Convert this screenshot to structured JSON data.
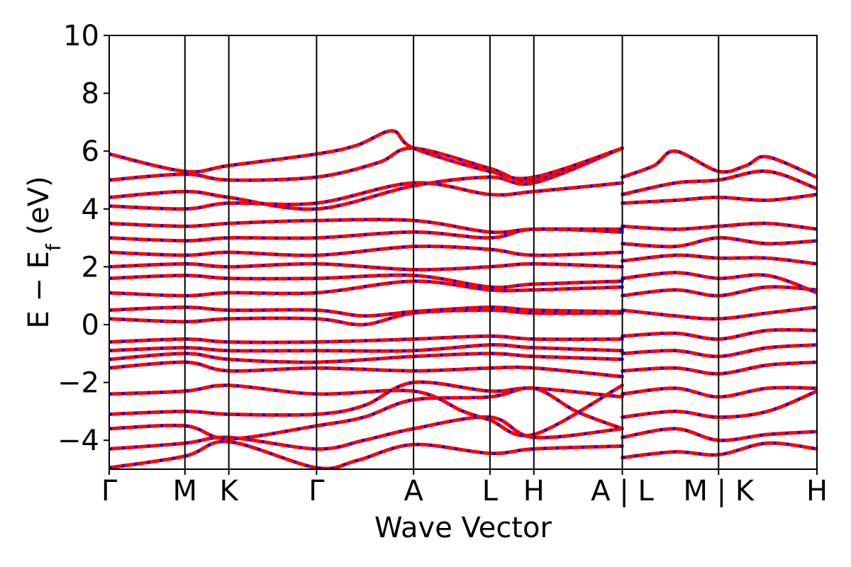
{
  "chart_data": {
    "type": "line",
    "title": "",
    "xlabel": "Wave Vector",
    "ylabel_main": "E − E",
    "ylabel_sub": "f",
    "ylabel_unit": " (eV)",
    "ylim": [
      -5,
      10
    ],
    "yticks": [
      -4,
      -2,
      0,
      2,
      4,
      6,
      8,
      10
    ],
    "ytick_labels": [
      "−4",
      "−2",
      "0",
      "2",
      "4",
      "6",
      "8",
      "10"
    ],
    "grid": false,
    "legend": "none",
    "colors": {
      "spin_up": "#ff0000",
      "spin_down": "#0000ff"
    },
    "kpoints": [
      {
        "label": "Γ",
        "x": 0.0
      },
      {
        "label": "M",
        "x": 0.107
      },
      {
        "label": "K",
        "x": 0.169
      },
      {
        "label": "Γ",
        "x": 0.293
      },
      {
        "label": "A",
        "x": 0.43
      },
      {
        "label": "L",
        "x": 0.538
      },
      {
        "label": "H",
        "x": 0.6
      },
      {
        "label": "A | L",
        "x": 0.725
      },
      {
        "label": "M | K",
        "x": 0.861
      },
      {
        "label": "H",
        "x": 1.0
      }
    ],
    "series": [
      {
        "points": [
          [
            0,
            -4.95
          ],
          [
            0.107,
            -4.55
          ],
          [
            0.169,
            -4.05
          ],
          [
            0.293,
            -4.95
          ],
          [
            0.35,
            -4.7
          ],
          [
            0.43,
            -4.15
          ],
          [
            0.538,
            -4.45
          ],
          [
            0.6,
            -4.3
          ],
          [
            0.725,
            -4.2
          ]
        ]
      },
      {
        "points": [
          [
            0,
            -4.3
          ],
          [
            0.107,
            -4.1
          ],
          [
            0.169,
            -3.9
          ],
          [
            0.293,
            -4.3
          ],
          [
            0.36,
            -4.0
          ],
          [
            0.43,
            -3.6
          ],
          [
            0.538,
            -3.2
          ],
          [
            0.6,
            -3.9
          ],
          [
            0.725,
            -3.6
          ]
        ]
      },
      {
        "points": [
          [
            0,
            -3.6
          ],
          [
            0.107,
            -3.5
          ],
          [
            0.169,
            -3.95
          ],
          [
            0.293,
            -3.5
          ],
          [
            0.36,
            -3.2
          ],
          [
            0.43,
            -2.6
          ],
          [
            0.538,
            -2.5
          ],
          [
            0.6,
            -2.2
          ],
          [
            0.66,
            -3.0
          ],
          [
            0.725,
            -3.6
          ]
        ]
      },
      {
        "points": [
          [
            0,
            -3.1
          ],
          [
            0.107,
            -3.0
          ],
          [
            0.169,
            -3.1
          ],
          [
            0.293,
            -3.1
          ],
          [
            0.36,
            -2.8
          ],
          [
            0.43,
            -2.0
          ],
          [
            0.538,
            -2.3
          ],
          [
            0.6,
            -2.2
          ],
          [
            0.725,
            -2.5
          ]
        ]
      },
      {
        "points": [
          [
            0,
            -2.4
          ],
          [
            0.107,
            -2.3
          ],
          [
            0.169,
            -2.1
          ],
          [
            0.293,
            -2.4
          ],
          [
            0.43,
            -2.3
          ],
          [
            0.5,
            -3.0
          ],
          [
            0.538,
            -3.3
          ],
          [
            0.6,
            -3.8
          ],
          [
            0.725,
            -2.1
          ]
        ]
      },
      {
        "points": [
          [
            0,
            -1.5
          ],
          [
            0.107,
            -1.3
          ],
          [
            0.169,
            -1.6
          ],
          [
            0.293,
            -1.5
          ],
          [
            0.43,
            -1.6
          ],
          [
            0.538,
            -1.5
          ],
          [
            0.6,
            -1.5
          ],
          [
            0.725,
            -1.8
          ]
        ]
      },
      {
        "points": [
          [
            0,
            -1.2
          ],
          [
            0.107,
            -1.0
          ],
          [
            0.169,
            -1.2
          ],
          [
            0.293,
            -1.3
          ],
          [
            0.43,
            -1.1
          ],
          [
            0.538,
            -1.0
          ],
          [
            0.6,
            -1.1
          ],
          [
            0.725,
            -1.2
          ]
        ]
      },
      {
        "points": [
          [
            0,
            -0.9
          ],
          [
            0.107,
            -0.8
          ],
          [
            0.169,
            -0.9
          ],
          [
            0.293,
            -0.9
          ],
          [
            0.43,
            -0.9
          ],
          [
            0.538,
            -0.7
          ],
          [
            0.6,
            -0.8
          ],
          [
            0.725,
            -0.9
          ]
        ]
      },
      {
        "points": [
          [
            0,
            -0.6
          ],
          [
            0.107,
            -0.5
          ],
          [
            0.169,
            -0.6
          ],
          [
            0.293,
            -0.6
          ],
          [
            0.43,
            -0.5
          ],
          [
            0.538,
            -0.4
          ],
          [
            0.6,
            -0.5
          ],
          [
            0.725,
            -0.5
          ]
        ]
      },
      {
        "points": [
          [
            0,
            0.2
          ],
          [
            0.107,
            0.1
          ],
          [
            0.169,
            0.2
          ],
          [
            0.293,
            0.2
          ],
          [
            0.36,
            0.0
          ],
          [
            0.43,
            0.4
          ],
          [
            0.538,
            0.5
          ],
          [
            0.6,
            0.4
          ],
          [
            0.725,
            0.4
          ]
        ]
      },
      {
        "points": [
          [
            0,
            0.5
          ],
          [
            0.107,
            0.6
          ],
          [
            0.169,
            0.5
          ],
          [
            0.293,
            0.5
          ],
          [
            0.36,
            0.3
          ],
          [
            0.43,
            0.45
          ],
          [
            0.538,
            0.6
          ],
          [
            0.6,
            0.5
          ],
          [
            0.725,
            0.45
          ]
        ]
      },
      {
        "points": [
          [
            0,
            1.1
          ],
          [
            0.107,
            1.0
          ],
          [
            0.169,
            1.1
          ],
          [
            0.293,
            1.1
          ],
          [
            0.43,
            1.5
          ],
          [
            0.538,
            1.2
          ],
          [
            0.6,
            1.2
          ],
          [
            0.725,
            1.3
          ]
        ]
      },
      {
        "points": [
          [
            0,
            1.6
          ],
          [
            0.107,
            1.7
          ],
          [
            0.169,
            1.6
          ],
          [
            0.293,
            1.6
          ],
          [
            0.43,
            1.7
          ],
          [
            0.538,
            1.3
          ],
          [
            0.6,
            1.4
          ],
          [
            0.725,
            1.5
          ]
        ]
      },
      {
        "points": [
          [
            0,
            2.0
          ],
          [
            0.107,
            2.1
          ],
          [
            0.169,
            2.0
          ],
          [
            0.293,
            2.1
          ],
          [
            0.43,
            1.9
          ],
          [
            0.538,
            2.0
          ],
          [
            0.6,
            2.1
          ],
          [
            0.725,
            2.0
          ]
        ]
      },
      {
        "points": [
          [
            0,
            2.5
          ],
          [
            0.107,
            2.4
          ],
          [
            0.169,
            2.5
          ],
          [
            0.293,
            2.4
          ],
          [
            0.43,
            2.7
          ],
          [
            0.538,
            2.6
          ],
          [
            0.6,
            2.4
          ],
          [
            0.725,
            2.5
          ]
        ]
      },
      {
        "points": [
          [
            0,
            3.0
          ],
          [
            0.107,
            2.9
          ],
          [
            0.169,
            3.0
          ],
          [
            0.293,
            3.0
          ],
          [
            0.43,
            3.2
          ],
          [
            0.538,
            3.0
          ],
          [
            0.6,
            3.3
          ],
          [
            0.725,
            3.2
          ]
        ]
      },
      {
        "points": [
          [
            0,
            3.5
          ],
          [
            0.107,
            3.4
          ],
          [
            0.169,
            3.5
          ],
          [
            0.293,
            3.6
          ],
          [
            0.43,
            3.6
          ],
          [
            0.538,
            3.2
          ],
          [
            0.6,
            3.3
          ],
          [
            0.725,
            3.3
          ]
        ]
      },
      {
        "points": [
          [
            0,
            4.1
          ],
          [
            0.107,
            4.0
          ],
          [
            0.169,
            4.2
          ],
          [
            0.293,
            4.2
          ],
          [
            0.43,
            4.9
          ],
          [
            0.538,
            4.5
          ],
          [
            0.6,
            4.6
          ],
          [
            0.725,
            4.9
          ]
        ]
      },
      {
        "points": [
          [
            0,
            4.4
          ],
          [
            0.107,
            4.6
          ],
          [
            0.169,
            4.4
          ],
          [
            0.293,
            4.0
          ],
          [
            0.43,
            4.8
          ],
          [
            0.538,
            5.1
          ],
          [
            0.6,
            4.9
          ],
          [
            0.725,
            6.1
          ]
        ]
      },
      {
        "points": [
          [
            0,
            5.0
          ],
          [
            0.107,
            5.2
          ],
          [
            0.169,
            5.0
          ],
          [
            0.293,
            5.1
          ],
          [
            0.38,
            5.6
          ],
          [
            0.43,
            6.1
          ],
          [
            0.538,
            5.4
          ],
          [
            0.6,
            5.0
          ],
          [
            0.725,
            6.1
          ]
        ]
      },
      {
        "points": [
          [
            0,
            5.9
          ],
          [
            0.107,
            5.3
          ],
          [
            0.169,
            5.5
          ],
          [
            0.293,
            5.9
          ],
          [
            0.35,
            6.2
          ],
          [
            0.4,
            6.7
          ],
          [
            0.43,
            6.1
          ],
          [
            0.538,
            5.3
          ],
          [
            0.6,
            5.1
          ],
          [
            0.725,
            6.1
          ]
        ]
      },
      {
        "points": [
          [
            0.725,
            -4.6
          ],
          [
            0.8,
            -4.4
          ],
          [
            0.861,
            -4.5
          ],
          [
            0.93,
            -4.1
          ],
          [
            1.0,
            -4.3
          ]
        ]
      },
      {
        "points": [
          [
            0.725,
            -3.9
          ],
          [
            0.8,
            -3.6
          ],
          [
            0.861,
            -4.0
          ],
          [
            0.93,
            -3.8
          ],
          [
            1.0,
            -3.7
          ]
        ]
      },
      {
        "points": [
          [
            0.725,
            -3.2
          ],
          [
            0.8,
            -3.0
          ],
          [
            0.861,
            -3.2
          ],
          [
            0.93,
            -3.0
          ],
          [
            1.0,
            -2.3
          ]
        ]
      },
      {
        "points": [
          [
            0.725,
            -2.4
          ],
          [
            0.8,
            -2.2
          ],
          [
            0.861,
            -2.5
          ],
          [
            0.93,
            -2.2
          ],
          [
            1.0,
            -2.2
          ]
        ]
      },
      {
        "points": [
          [
            0.725,
            -1.6
          ],
          [
            0.8,
            -1.5
          ],
          [
            0.861,
            -1.7
          ],
          [
            0.93,
            -1.4
          ],
          [
            1.0,
            -1.3
          ]
        ]
      },
      {
        "points": [
          [
            0.725,
            -1.0
          ],
          [
            0.8,
            -0.9
          ],
          [
            0.861,
            -1.1
          ],
          [
            0.93,
            -0.8
          ],
          [
            1.0,
            -0.7
          ]
        ]
      },
      {
        "points": [
          [
            0.725,
            -0.4
          ],
          [
            0.8,
            -0.3
          ],
          [
            0.861,
            -0.5
          ],
          [
            0.93,
            -0.2
          ],
          [
            1.0,
            -0.2
          ]
        ]
      },
      {
        "points": [
          [
            0.725,
            0.5
          ],
          [
            0.8,
            0.3
          ],
          [
            0.861,
            0.2
          ],
          [
            0.93,
            0.4
          ],
          [
            1.0,
            0.6
          ]
        ]
      },
      {
        "points": [
          [
            0.725,
            1.0
          ],
          [
            0.8,
            1.2
          ],
          [
            0.861,
            1.0
          ],
          [
            0.93,
            1.3
          ],
          [
            1.0,
            1.2
          ]
        ]
      },
      {
        "points": [
          [
            0.725,
            1.6
          ],
          [
            0.8,
            1.8
          ],
          [
            0.861,
            1.6
          ],
          [
            0.93,
            1.7
          ],
          [
            1.0,
            1.1
          ]
        ]
      },
      {
        "points": [
          [
            0.725,
            2.2
          ],
          [
            0.8,
            2.4
          ],
          [
            0.861,
            2.3
          ],
          [
            0.93,
            2.3
          ],
          [
            1.0,
            2.1
          ]
        ]
      },
      {
        "points": [
          [
            0.725,
            2.8
          ],
          [
            0.8,
            2.7
          ],
          [
            0.861,
            3.0
          ],
          [
            0.93,
            2.8
          ],
          [
            1.0,
            2.9
          ]
        ]
      },
      {
        "points": [
          [
            0.725,
            3.4
          ],
          [
            0.8,
            3.3
          ],
          [
            0.861,
            3.4
          ],
          [
            0.93,
            3.5
          ],
          [
            1.0,
            3.3
          ]
        ]
      },
      {
        "points": [
          [
            0.725,
            4.2
          ],
          [
            0.8,
            4.3
          ],
          [
            0.861,
            4.4
          ],
          [
            0.93,
            4.3
          ],
          [
            1.0,
            4.5
          ]
        ]
      },
      {
        "points": [
          [
            0.725,
            4.5
          ],
          [
            0.8,
            4.9
          ],
          [
            0.861,
            5.0
          ],
          [
            0.93,
            5.3
          ],
          [
            1.0,
            4.7
          ]
        ]
      },
      {
        "points": [
          [
            0.725,
            5.1
          ],
          [
            0.77,
            5.5
          ],
          [
            0.8,
            6.0
          ],
          [
            0.861,
            5.3
          ],
          [
            0.9,
            5.5
          ],
          [
            0.93,
            5.8
          ],
          [
            1.0,
            5.1
          ]
        ]
      }
    ]
  }
}
